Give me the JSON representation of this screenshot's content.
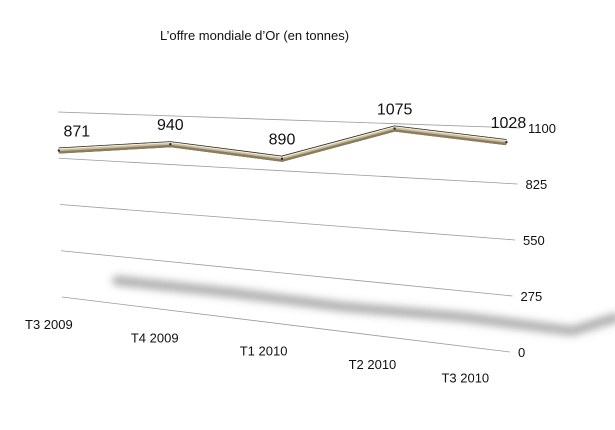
{
  "chart_data": {
    "type": "line",
    "title": "L’offre mondiale d’Or (en tonnes)",
    "categories": [
      "T3 2009",
      "T4 2009",
      "T1 2010",
      "T2 2010",
      "T3 2010"
    ],
    "series": [
      {
        "values": [
          871,
          940,
          890,
          1075,
          1028
        ],
        "color": "#c9bd9b"
      }
    ],
    "ylim": [
      0,
      1100
    ],
    "yticks": [
      "0",
      "275",
      "550",
      "825",
      "1100"
    ],
    "data_labels": [
      "871",
      "940",
      "890",
      "1075",
      "1028"
    ],
    "xlabel": "",
    "ylabel": "",
    "grid": true,
    "legend": "none",
    "style": "3d-perspective"
  }
}
